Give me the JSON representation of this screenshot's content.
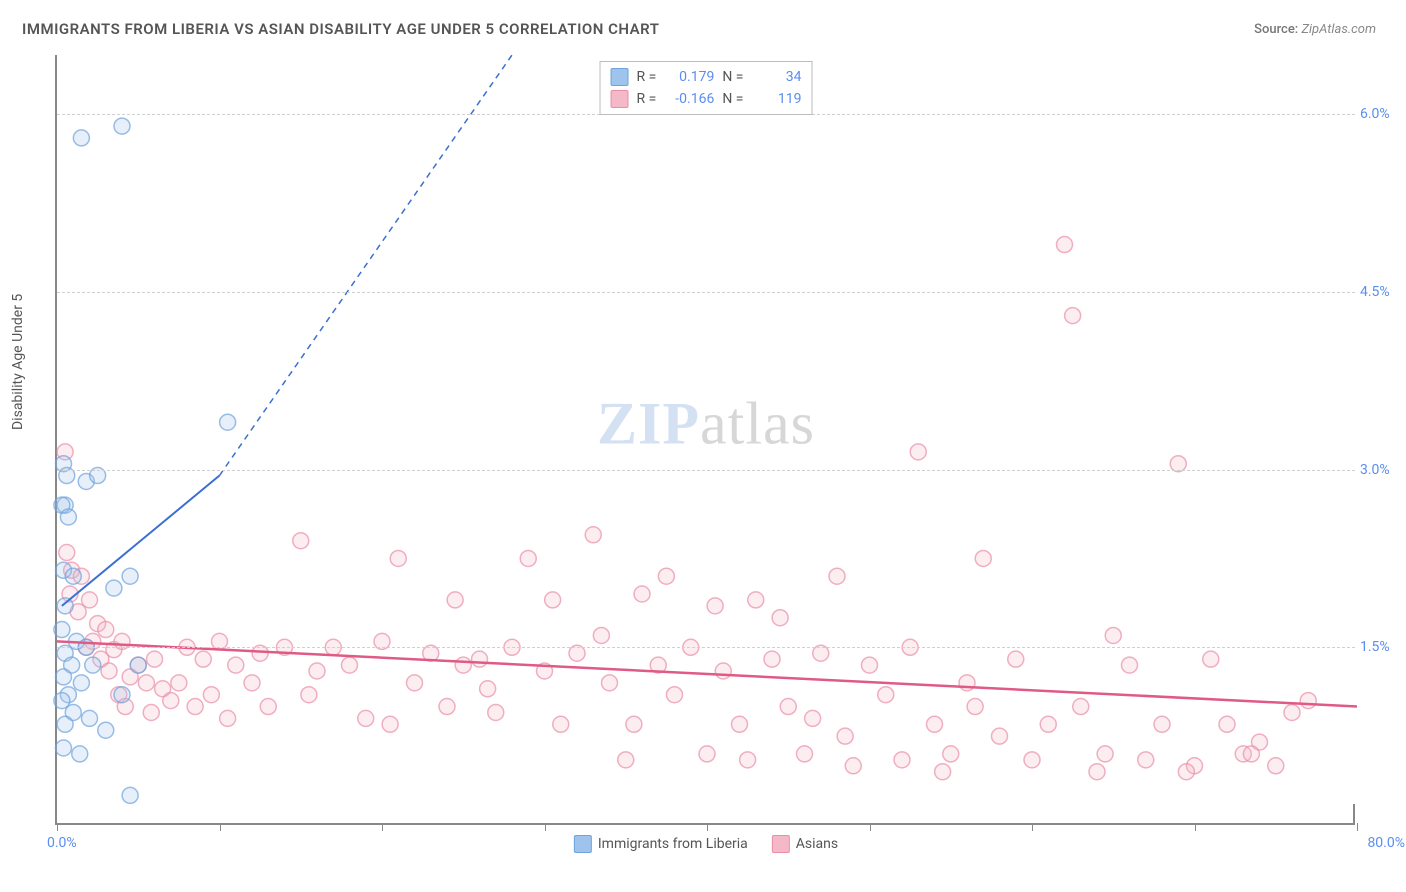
{
  "title": "IMMIGRANTS FROM LIBERIA VS ASIAN DISABILITY AGE UNDER 5 CORRELATION CHART",
  "source_label": "Source:",
  "source_value": "ZipAtlas.com",
  "yaxis_label": "Disability Age Under 5",
  "watermark_left": "ZIP",
  "watermark_right": "atlas",
  "chart": {
    "type": "scatter",
    "xlim": [
      0,
      80
    ],
    "ylim": [
      0,
      6.5
    ],
    "xaxis_min_label": "0.0%",
    "xaxis_max_label": "80.0%",
    "ytick_positions": [
      1.5,
      3.0,
      4.5,
      6.0
    ],
    "ytick_labels": [
      "1.5%",
      "3.0%",
      "4.5%",
      "6.0%"
    ],
    "xtick_positions": [
      0,
      10,
      20,
      30,
      40,
      50,
      60,
      70,
      80
    ],
    "background_color": "#ffffff",
    "grid_color": "#d0d0d0",
    "axis_color": "#888888",
    "marker_radius": 8,
    "series": [
      {
        "name": "Immigrants from Liberia",
        "color_fill": "#9ec3ed",
        "color_stroke": "#6fa3dc",
        "R": "0.179",
        "N": "34",
        "regression": {
          "x1": 0.3,
          "y1": 1.85,
          "x2": 10,
          "y2": 2.95,
          "x2_dash": 28,
          "y2_dash": 6.5,
          "color": "#3b6fd1",
          "width": 2
        },
        "points": [
          [
            0.4,
            3.05
          ],
          [
            0.6,
            2.95
          ],
          [
            0.5,
            2.7
          ],
          [
            0.3,
            2.7
          ],
          [
            0.7,
            2.6
          ],
          [
            0.4,
            2.15
          ],
          [
            1.0,
            2.1
          ],
          [
            0.5,
            1.85
          ],
          [
            0.3,
            1.65
          ],
          [
            1.2,
            1.55
          ],
          [
            1.8,
            1.5
          ],
          [
            0.5,
            1.45
          ],
          [
            0.9,
            1.35
          ],
          [
            2.2,
            1.35
          ],
          [
            0.4,
            1.25
          ],
          [
            1.5,
            1.2
          ],
          [
            0.7,
            1.1
          ],
          [
            0.3,
            1.05
          ],
          [
            1.0,
            0.95
          ],
          [
            2.0,
            0.9
          ],
          [
            0.5,
            0.85
          ],
          [
            3.0,
            0.8
          ],
          [
            0.4,
            0.65
          ],
          [
            1.4,
            0.6
          ],
          [
            3.5,
            2.0
          ],
          [
            4.5,
            2.1
          ],
          [
            1.8,
            2.9
          ],
          [
            2.5,
            2.95
          ],
          [
            5.0,
            1.35
          ],
          [
            4.0,
            1.1
          ],
          [
            1.5,
            5.8
          ],
          [
            4.0,
            5.9
          ],
          [
            4.5,
            0.25
          ],
          [
            10.5,
            3.4
          ]
        ]
      },
      {
        "name": "Asians",
        "color_fill": "#f5b8c8",
        "color_stroke": "#e98fa8",
        "R": "-0.166",
        "N": "119",
        "regression": {
          "x1": 0,
          "y1": 1.55,
          "x2": 80,
          "y2": 1.0,
          "color": "#e05a86",
          "width": 2.5
        },
        "points": [
          [
            0.5,
            3.15
          ],
          [
            0.6,
            2.3
          ],
          [
            0.9,
            2.15
          ],
          [
            1.5,
            2.1
          ],
          [
            0.8,
            1.95
          ],
          [
            2.0,
            1.9
          ],
          [
            1.3,
            1.8
          ],
          [
            2.5,
            1.7
          ],
          [
            3.0,
            1.65
          ],
          [
            2.2,
            1.55
          ],
          [
            1.8,
            1.5
          ],
          [
            3.5,
            1.48
          ],
          [
            4.0,
            1.55
          ],
          [
            2.7,
            1.4
          ],
          [
            5.0,
            1.35
          ],
          [
            3.2,
            1.3
          ],
          [
            4.5,
            1.25
          ],
          [
            6.0,
            1.4
          ],
          [
            5.5,
            1.2
          ],
          [
            3.8,
            1.1
          ],
          [
            6.5,
            1.15
          ],
          [
            4.2,
            1.0
          ],
          [
            7.0,
            1.05
          ],
          [
            5.8,
            0.95
          ],
          [
            8.0,
            1.5
          ],
          [
            7.5,
            1.2
          ],
          [
            9.0,
            1.4
          ],
          [
            8.5,
            1.0
          ],
          [
            10.0,
            1.55
          ],
          [
            9.5,
            1.1
          ],
          [
            11.0,
            1.35
          ],
          [
            10.5,
            0.9
          ],
          [
            12.5,
            1.45
          ],
          [
            13.0,
            1.0
          ],
          [
            14.0,
            1.5
          ],
          [
            12.0,
            1.2
          ],
          [
            15.0,
            2.4
          ],
          [
            16.0,
            1.3
          ],
          [
            17.0,
            1.5
          ],
          [
            15.5,
            1.1
          ],
          [
            18.0,
            1.35
          ],
          [
            19.0,
            0.9
          ],
          [
            20.0,
            1.55
          ],
          [
            21.0,
            2.25
          ],
          [
            22.0,
            1.2
          ],
          [
            20.5,
            0.85
          ],
          [
            23.0,
            1.45
          ],
          [
            24.0,
            1.0
          ],
          [
            25.0,
            1.35
          ],
          [
            24.5,
            1.9
          ],
          [
            26.0,
            1.4
          ],
          [
            27.0,
            0.95
          ],
          [
            28.0,
            1.5
          ],
          [
            26.5,
            1.15
          ],
          [
            29.0,
            2.25
          ],
          [
            30.0,
            1.3
          ],
          [
            31.0,
            0.85
          ],
          [
            32.0,
            1.45
          ],
          [
            30.5,
            1.9
          ],
          [
            33.0,
            2.45
          ],
          [
            34.0,
            1.2
          ],
          [
            35.0,
            0.55
          ],
          [
            33.5,
            1.6
          ],
          [
            36.0,
            1.95
          ],
          [
            37.0,
            1.35
          ],
          [
            35.5,
            0.85
          ],
          [
            38.0,
            1.1
          ],
          [
            39.0,
            1.5
          ],
          [
            37.5,
            2.1
          ],
          [
            40.0,
            0.6
          ],
          [
            41.0,
            1.3
          ],
          [
            42.0,
            0.85
          ],
          [
            40.5,
            1.85
          ],
          [
            43.0,
            1.9
          ],
          [
            44.0,
            1.4
          ],
          [
            42.5,
            0.55
          ],
          [
            45.0,
            1.0
          ],
          [
            46.0,
            0.6
          ],
          [
            44.5,
            1.75
          ],
          [
            47.0,
            1.45
          ],
          [
            48.0,
            2.1
          ],
          [
            46.5,
            0.9
          ],
          [
            49.0,
            0.5
          ],
          [
            50.0,
            1.35
          ],
          [
            48.5,
            0.75
          ],
          [
            51.0,
            1.1
          ],
          [
            52.0,
            0.55
          ],
          [
            53.0,
            3.15
          ],
          [
            54.0,
            0.85
          ],
          [
            52.5,
            1.5
          ],
          [
            55.0,
            0.6
          ],
          [
            56.0,
            1.2
          ],
          [
            54.5,
            0.45
          ],
          [
            57.0,
            2.25
          ],
          [
            58.0,
            0.75
          ],
          [
            56.5,
            1.0
          ],
          [
            59.0,
            1.4
          ],
          [
            60.0,
            0.55
          ],
          [
            61.0,
            0.85
          ],
          [
            62.0,
            4.9
          ],
          [
            63.0,
            1.0
          ],
          [
            64.0,
            0.45
          ],
          [
            62.5,
            4.3
          ],
          [
            65.0,
            1.6
          ],
          [
            66.0,
            1.35
          ],
          [
            67.0,
            0.55
          ],
          [
            68.0,
            0.85
          ],
          [
            64.5,
            0.6
          ],
          [
            69.0,
            3.05
          ],
          [
            70.0,
            0.5
          ],
          [
            71.0,
            1.4
          ],
          [
            72.0,
            0.85
          ],
          [
            69.5,
            0.45
          ],
          [
            73.0,
            0.6
          ],
          [
            74.0,
            0.7
          ],
          [
            75.0,
            0.5
          ],
          [
            76.0,
            0.95
          ],
          [
            73.5,
            0.6
          ],
          [
            77.0,
            1.05
          ]
        ]
      }
    ]
  },
  "legend_top_labels": {
    "R": "R =",
    "N": "N ="
  }
}
